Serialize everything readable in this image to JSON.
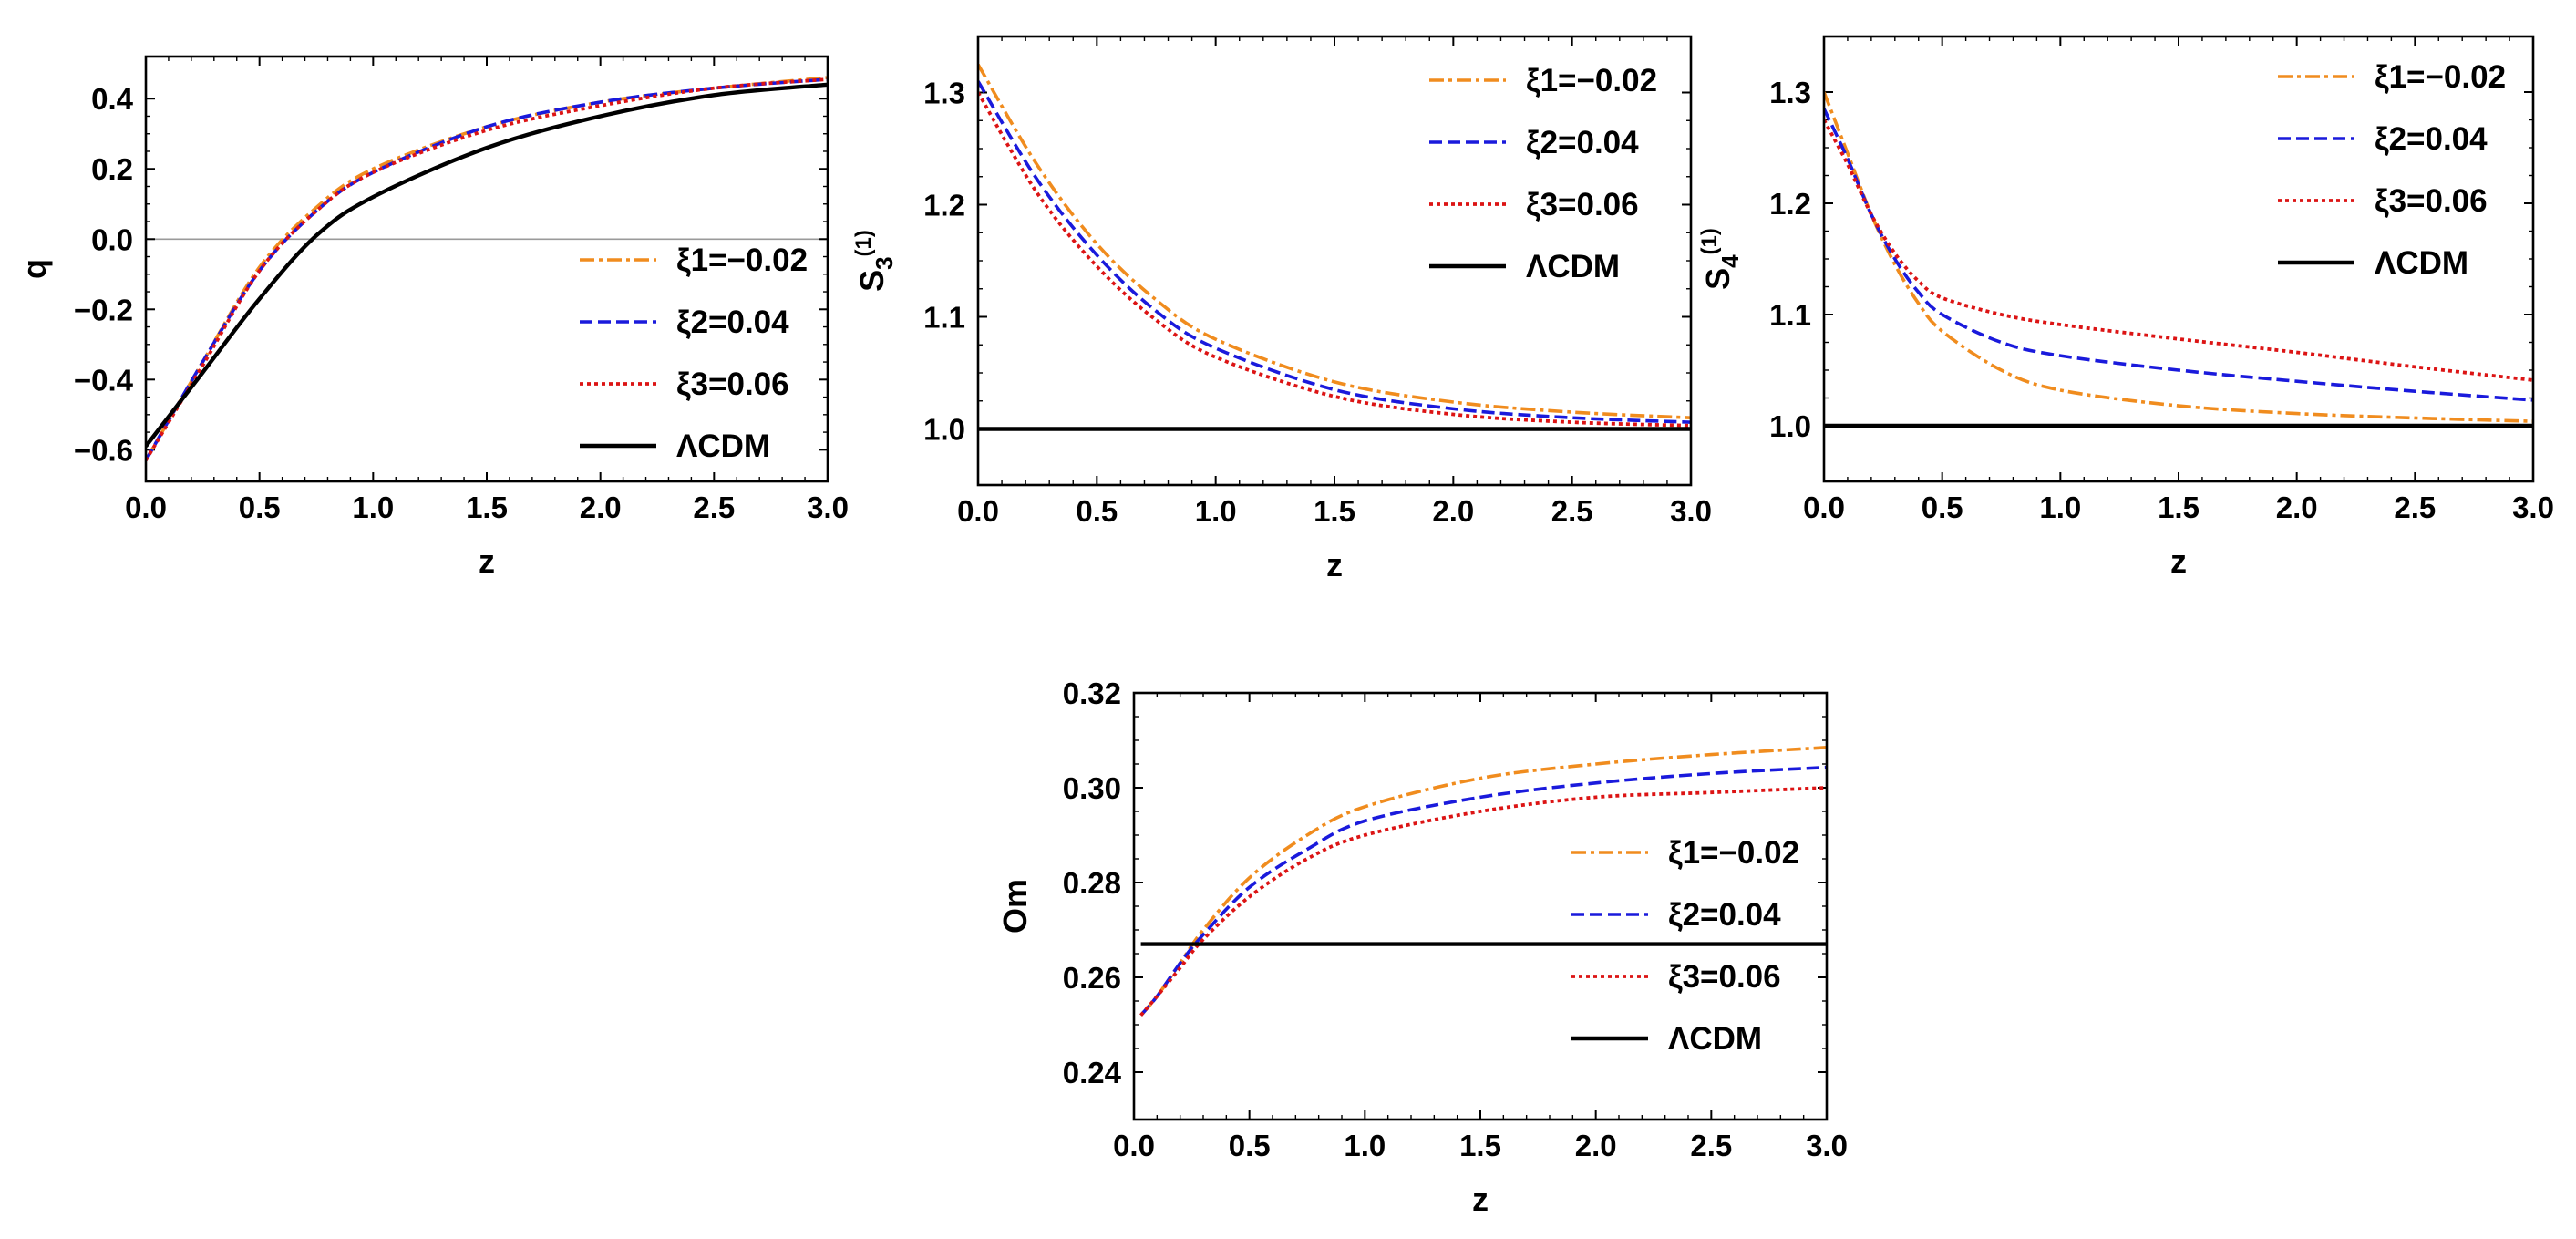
{
  "colors": {
    "xi1": "#f08c1e",
    "xi2": "#1a1adc",
    "xi3": "#dc1414",
    "lcdm": "#000000",
    "zero_line": "#9a9a9a"
  },
  "chart_data": [
    {
      "id": "q",
      "type": "line",
      "xlabel": "z",
      "ylabel": "q",
      "ylabel_sub": "",
      "ylabel_sup": "",
      "xlim": [
        0,
        3
      ],
      "ylim": [
        -0.69,
        0.52
      ],
      "xticks": [
        "0.0",
        "0.5",
        "1.0",
        "1.5",
        "2.0",
        "2.5",
        "3.0"
      ],
      "yticks": [
        "-0.6",
        "-0.4",
        "-0.2",
        "0.0",
        "0.2",
        "0.4"
      ],
      "reference_line_y": 0,
      "legend_position": "center-right",
      "x": [
        0,
        0.25,
        0.5,
        0.75,
        1.0,
        1.5,
        2.0,
        2.5,
        3.0
      ],
      "series": [
        {
          "name": "ξ1=−0.02",
          "style": "dash-dot",
          "color_key": "xi1",
          "values": [
            -0.63,
            -0.35,
            -0.08,
            0.09,
            0.2,
            0.32,
            0.39,
            0.43,
            0.46
          ]
        },
        {
          "name": "ξ2=0.04",
          "style": "dashed",
          "color_key": "xi2",
          "values": [
            -0.63,
            -0.35,
            -0.09,
            0.08,
            0.19,
            0.32,
            0.39,
            0.43,
            0.455
          ]
        },
        {
          "name": "ξ3=0.06",
          "style": "dotted",
          "color_key": "xi3",
          "values": [
            -0.63,
            -0.36,
            -0.09,
            0.08,
            0.19,
            0.31,
            0.38,
            0.43,
            0.455
          ]
        },
        {
          "name": "ΛCDM",
          "style": "solid",
          "color_key": "lcdm",
          "values": [
            -0.59,
            -0.38,
            -0.17,
            0.01,
            0.12,
            0.26,
            0.35,
            0.41,
            0.44
          ]
        }
      ]
    },
    {
      "id": "s3",
      "type": "line",
      "xlabel": "z",
      "ylabel": "S",
      "ylabel_sub": "3",
      "ylabel_sup": "(1)",
      "xlim": [
        0,
        3
      ],
      "ylim": [
        0.95,
        1.35
      ],
      "xticks": [
        "0.0",
        "0.5",
        "1.0",
        "1.5",
        "2.0",
        "2.5",
        "3.0"
      ],
      "yticks": [
        "1.0",
        "1.1",
        "1.2",
        "1.3"
      ],
      "legend_position": "top-right",
      "x": [
        0,
        0.25,
        0.5,
        0.75,
        1.0,
        1.5,
        2.0,
        2.5,
        3.0
      ],
      "series": [
        {
          "name": "ξ1=−0.02",
          "style": "dash-dot",
          "color_key": "xi1",
          "values": [
            1.325,
            1.235,
            1.165,
            1.115,
            1.08,
            1.042,
            1.024,
            1.015,
            1.01
          ]
        },
        {
          "name": "ξ2=0.04",
          "style": "dashed",
          "color_key": "xi2",
          "values": [
            1.31,
            1.222,
            1.155,
            1.105,
            1.072,
            1.035,
            1.018,
            1.01,
            1.006
          ]
        },
        {
          "name": "ξ3=0.06",
          "style": "dotted",
          "color_key": "xi3",
          "values": [
            1.3,
            1.21,
            1.145,
            1.097,
            1.064,
            1.029,
            1.013,
            1.006,
            1.003
          ]
        },
        {
          "name": "ΛCDM",
          "style": "solid",
          "color_key": "lcdm",
          "values": [
            1.0,
            1.0,
            1.0,
            1.0,
            1.0,
            1.0,
            1.0,
            1.0,
            1.0
          ]
        }
      ]
    },
    {
      "id": "s4",
      "type": "line",
      "xlabel": "z",
      "ylabel": "S",
      "ylabel_sub": "4",
      "ylabel_sup": "(1)",
      "xlim": [
        0,
        3
      ],
      "ylim": [
        0.95,
        1.35
      ],
      "xticks": [
        "0.0",
        "0.5",
        "1.0",
        "1.5",
        "2.0",
        "2.5",
        "3.0"
      ],
      "yticks": [
        "1.0",
        "1.1",
        "1.2",
        "1.3"
      ],
      "legend_position": "top-right",
      "x": [
        0,
        0.1,
        0.2,
        0.3,
        0.4,
        0.5,
        0.75,
        1.0,
        1.5,
        2.0,
        2.5,
        3.0
      ],
      "series": [
        {
          "name": "ξ1=−0.02",
          "style": "dash-dot",
          "color_key": "xi1",
          "values": [
            1.3,
            1.245,
            1.19,
            1.145,
            1.11,
            1.085,
            1.05,
            1.032,
            1.018,
            1.011,
            1.007,
            1.004
          ]
        },
        {
          "name": "ξ2=0.04",
          "style": "dashed",
          "color_key": "xi2",
          "values": [
            1.285,
            1.24,
            1.19,
            1.15,
            1.12,
            1.1,
            1.075,
            1.063,
            1.05,
            1.04,
            1.031,
            1.023
          ]
        },
        {
          "name": "ξ3=0.06",
          "style": "dotted",
          "color_key": "xi3",
          "values": [
            1.275,
            1.235,
            1.19,
            1.155,
            1.13,
            1.115,
            1.1,
            1.091,
            1.078,
            1.066,
            1.053,
            1.041
          ]
        },
        {
          "name": "ΛCDM",
          "style": "solid",
          "color_key": "lcdm",
          "values": [
            1.0,
            1.0,
            1.0,
            1.0,
            1.0,
            1.0,
            1.0,
            1.0,
            1.0,
            1.0,
            1.0,
            1.0
          ]
        }
      ]
    },
    {
      "id": "om",
      "type": "line",
      "xlabel": "z",
      "ylabel": "Om",
      "ylabel_sub": "",
      "ylabel_sup": "",
      "xlim": [
        0,
        3
      ],
      "ylim": [
        0.23,
        0.32
      ],
      "xticks": [
        "0.0",
        "0.5",
        "1.0",
        "1.5",
        "2.0",
        "2.5",
        "3.0"
      ],
      "yticks": [
        "0.24",
        "0.26",
        "0.28",
        "0.30",
        "0.32"
      ],
      "legend_position": "center-right",
      "x": [
        0.03,
        0.1,
        0.2,
        0.3,
        0.5,
        0.75,
        1.0,
        1.5,
        2.0,
        2.5,
        3.0
      ],
      "series": [
        {
          "name": "ξ1=−0.02",
          "style": "dash-dot",
          "color_key": "xi1",
          "values": [
            0.252,
            0.256,
            0.263,
            0.27,
            0.281,
            0.29,
            0.296,
            0.302,
            0.305,
            0.307,
            0.3085
          ]
        },
        {
          "name": "ξ2=0.04",
          "style": "dashed",
          "color_key": "xi2",
          "values": [
            0.252,
            0.256,
            0.263,
            0.269,
            0.279,
            0.287,
            0.293,
            0.298,
            0.301,
            0.303,
            0.3043
          ]
        },
        {
          "name": "ξ3=0.06",
          "style": "dotted",
          "color_key": "xi3",
          "values": [
            0.252,
            0.256,
            0.262,
            0.268,
            0.277,
            0.285,
            0.29,
            0.295,
            0.298,
            0.299,
            0.3
          ]
        },
        {
          "name": "ΛCDM",
          "style": "solid",
          "color_key": "lcdm",
          "values": [
            0.267,
            0.267,
            0.267,
            0.267,
            0.267,
            0.267,
            0.267,
            0.267,
            0.267,
            0.267,
            0.267
          ]
        }
      ]
    }
  ]
}
